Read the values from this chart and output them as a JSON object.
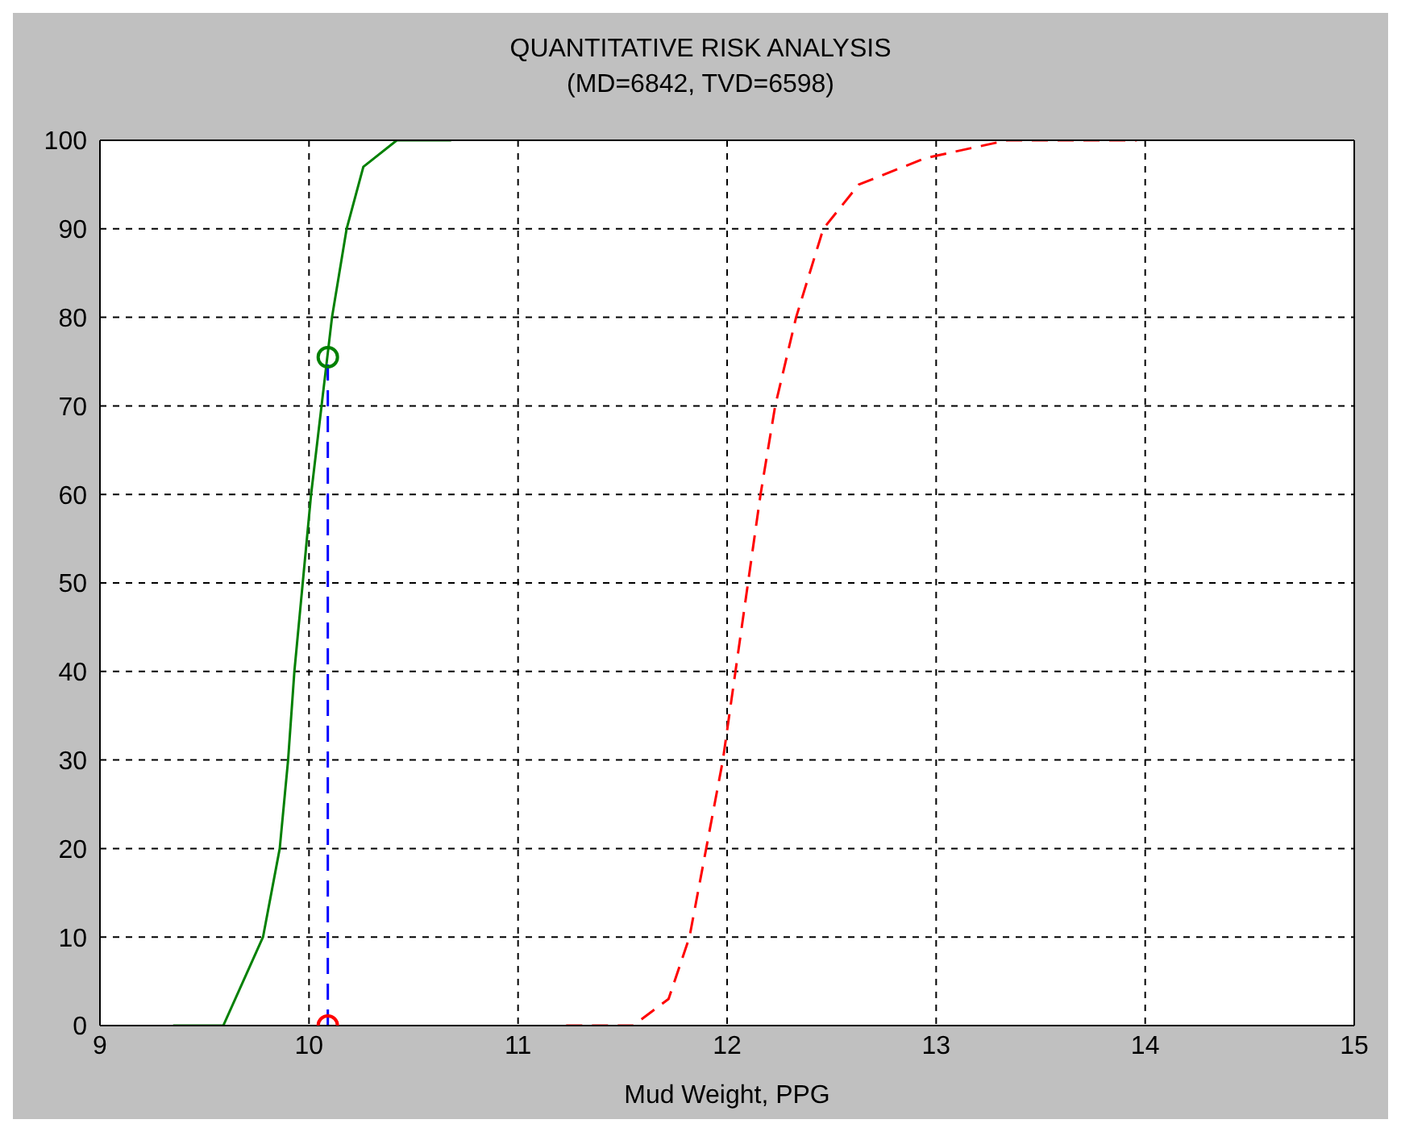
{
  "chart_data": {
    "type": "line",
    "title": "QUANTITATIVE RISK ANALYSIS",
    "subtitle": "(MD=6842, TVD=6598)",
    "xlabel": "Mud Weight, PPG",
    "xlim": [
      9,
      15
    ],
    "xticks": [
      9,
      10,
      11,
      12,
      13,
      14,
      15
    ],
    "ylim": [
      0,
      100
    ],
    "yticks": [
      0,
      10,
      20,
      30,
      40,
      50,
      60,
      70,
      80,
      90,
      100
    ],
    "grid": true,
    "marker": "none",
    "series": [
      {
        "color": "#008000",
        "line_style": "solid",
        "x": [
          9.35,
          9.59,
          9.78,
          9.86,
          9.9,
          9.93,
          9.97,
          10.01,
          10.06,
          10.11,
          10.18,
          10.26,
          10.42,
          10.68
        ],
        "values": [
          0,
          0,
          10,
          20,
          30,
          40,
          50,
          60,
          70,
          80,
          90,
          97,
          100,
          100
        ]
      },
      {
        "color": "#ff0000",
        "line_style": "dashed",
        "x": [
          11.23,
          11.55,
          11.72,
          11.82,
          11.9,
          11.98,
          12.04,
          12.1,
          12.16,
          12.23,
          12.33,
          12.46,
          12.63,
          12.95,
          13.34,
          13.96
        ],
        "values": [
          0,
          0,
          3,
          10,
          20,
          30,
          40,
          50,
          60,
          70,
          80,
          90,
          95,
          98,
          100,
          100
        ]
      },
      {
        "color": "#0000ff",
        "line_style": "dashed",
        "x": [
          10.09,
          10.09
        ],
        "values": [
          0,
          75.5
        ]
      },
      {
        "type": "scatter",
        "marker": "circle",
        "color": "#008000",
        "x": [
          10.09
        ],
        "values": [
          75.5
        ]
      },
      {
        "type": "scatter",
        "marker": "circle",
        "color": "#ff0000",
        "x": [
          10.09
        ],
        "values": [
          0
        ]
      }
    ]
  }
}
